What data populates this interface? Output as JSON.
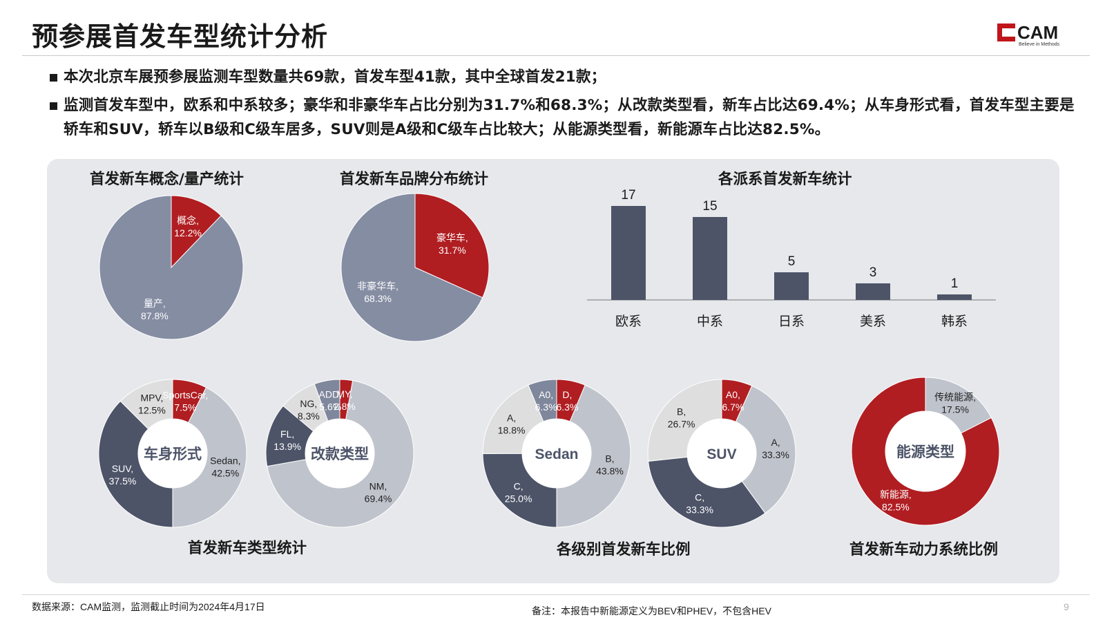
{
  "page": {
    "title": "预参展首发车型统计分析",
    "logo_text": "CAM",
    "logo_tagline": "Believe in Methods",
    "bullets": [
      "本次北京车展预参展监测车型数量共69款，首发车型41款，其中全球首发21款；",
      "监测首发车型中，欧系和中系较多；豪华和非豪华车占比分别为31.7%和68.3%；从改款类型看，新车占比达69.4%；从车身形式看，首发车型主要是轿车和SUV，轿车以B级和C级车居多，SUV则是A级和C级车占比较大；从能源类型看，新能源车占比达82.5%。"
    ],
    "section_titles": {
      "type_stats": "首发新车类型统计",
      "level_ratio": "各级别首发新车比例",
      "power_ratio": "首发新车动力系统比例"
    },
    "footer": {
      "source": "数据来源：CAM监测，监测截止时间为2024年4月17日",
      "note": "备注：本报告中新能源定义为BEV和PHEV，不包含HEV",
      "page_number": "9"
    },
    "colors": {
      "red": "#b01e22",
      "slate_blue": "#858da3",
      "dark_slate": "#4d5468",
      "light_gray": "#bfc3cc",
      "pale_gray": "#dedede",
      "mid_slate": "#7f879c",
      "panel_bg": "#e7e8ec"
    }
  },
  "chart_data": [
    {
      "id": "concept",
      "type": "pie",
      "title": "首发新车概念/量产统计",
      "slices": [
        {
          "label": "概念,",
          "value": 12.2,
          "pct": "12.2%",
          "color": "#b01e22"
        },
        {
          "label": "量产,",
          "value": 87.8,
          "pct": "87.8%",
          "color": "#858da3"
        }
      ]
    },
    {
      "id": "brand",
      "type": "pie",
      "title": "首发新车品牌分布统计",
      "slices": [
        {
          "label": "豪华车,",
          "value": 31.7,
          "pct": "31.7%",
          "color": "#b01e22"
        },
        {
          "label": "非豪华车,",
          "value": 68.3,
          "pct": "68.3%",
          "color": "#858da3"
        }
      ]
    },
    {
      "id": "origin",
      "type": "bar",
      "title": "各派系首发新车统计",
      "categories": [
        "欧系",
        "中系",
        "日系",
        "美系",
        "韩系"
      ],
      "values": [
        17,
        15,
        5,
        3,
        1
      ],
      "color": "#4d5468"
    },
    {
      "id": "body",
      "type": "pie",
      "title": "",
      "center_label": "车身形式",
      "slices": [
        {
          "label": "SportsCar,",
          "value": 7.5,
          "pct": "7.5%",
          "color": "#b01e22"
        },
        {
          "label": "Sedan,",
          "value": 42.5,
          "pct": "42.5%",
          "color": "#bfc3cc"
        },
        {
          "label": "SUV,",
          "value": 37.5,
          "pct": "37.5%",
          "color": "#4d5468"
        },
        {
          "label": "MPV,",
          "value": 12.5,
          "pct": "12.5%",
          "color": "#dedede"
        }
      ]
    },
    {
      "id": "facelift",
      "type": "pie",
      "title": "",
      "center_label": "改款类型",
      "slices": [
        {
          "label": "MY,",
          "value": 2.8,
          "pct": "2.8%",
          "color": "#b01e22"
        },
        {
          "label": "NM,",
          "value": 69.4,
          "pct": "69.4%",
          "color": "#bfc3cc"
        },
        {
          "label": "FL,",
          "value": 13.9,
          "pct": "13.9%",
          "color": "#4d5468"
        },
        {
          "label": "NG,",
          "value": 8.3,
          "pct": "8.3%",
          "color": "#dedede"
        },
        {
          "label": "ADD,",
          "value": 5.6,
          "pct": "5.6%",
          "color": "#7f879c"
        }
      ]
    },
    {
      "id": "sedan",
      "type": "pie",
      "title": "",
      "center_label": "Sedan",
      "slices": [
        {
          "label": "D,",
          "value": 6.3,
          "pct": "6.3%",
          "color": "#b01e22"
        },
        {
          "label": "B,",
          "value": 43.8,
          "pct": "43.8%",
          "color": "#bfc3cc"
        },
        {
          "label": "C,",
          "value": 25.0,
          "pct": "25.0%",
          "color": "#4d5468"
        },
        {
          "label": "A,",
          "value": 18.8,
          "pct": "18.8%",
          "color": "#dedede"
        },
        {
          "label": "A0,",
          "value": 6.3,
          "pct": "6.3%",
          "color": "#7f879c"
        }
      ]
    },
    {
      "id": "suv",
      "type": "pie",
      "title": "",
      "center_label": "SUV",
      "slices": [
        {
          "label": "A0,",
          "value": 6.7,
          "pct": "6.7%",
          "color": "#b01e22"
        },
        {
          "label": "A,",
          "value": 33.3,
          "pct": "33.3%",
          "color": "#bfc3cc"
        },
        {
          "label": "C,",
          "value": 33.3,
          "pct": "33.3%",
          "color": "#4d5468"
        },
        {
          "label": "B,",
          "value": 26.7,
          "pct": "26.7%",
          "color": "#dedede"
        }
      ]
    },
    {
      "id": "energy",
      "type": "pie",
      "title": "",
      "center_label": "能源类型",
      "slices": [
        {
          "label": "传统能源,",
          "value": 17.5,
          "pct": "17.5%",
          "color": "#bfc3cc"
        },
        {
          "label": "新能源,",
          "value": 82.5,
          "pct": "82.5%",
          "color": "#b01e22"
        }
      ]
    }
  ]
}
